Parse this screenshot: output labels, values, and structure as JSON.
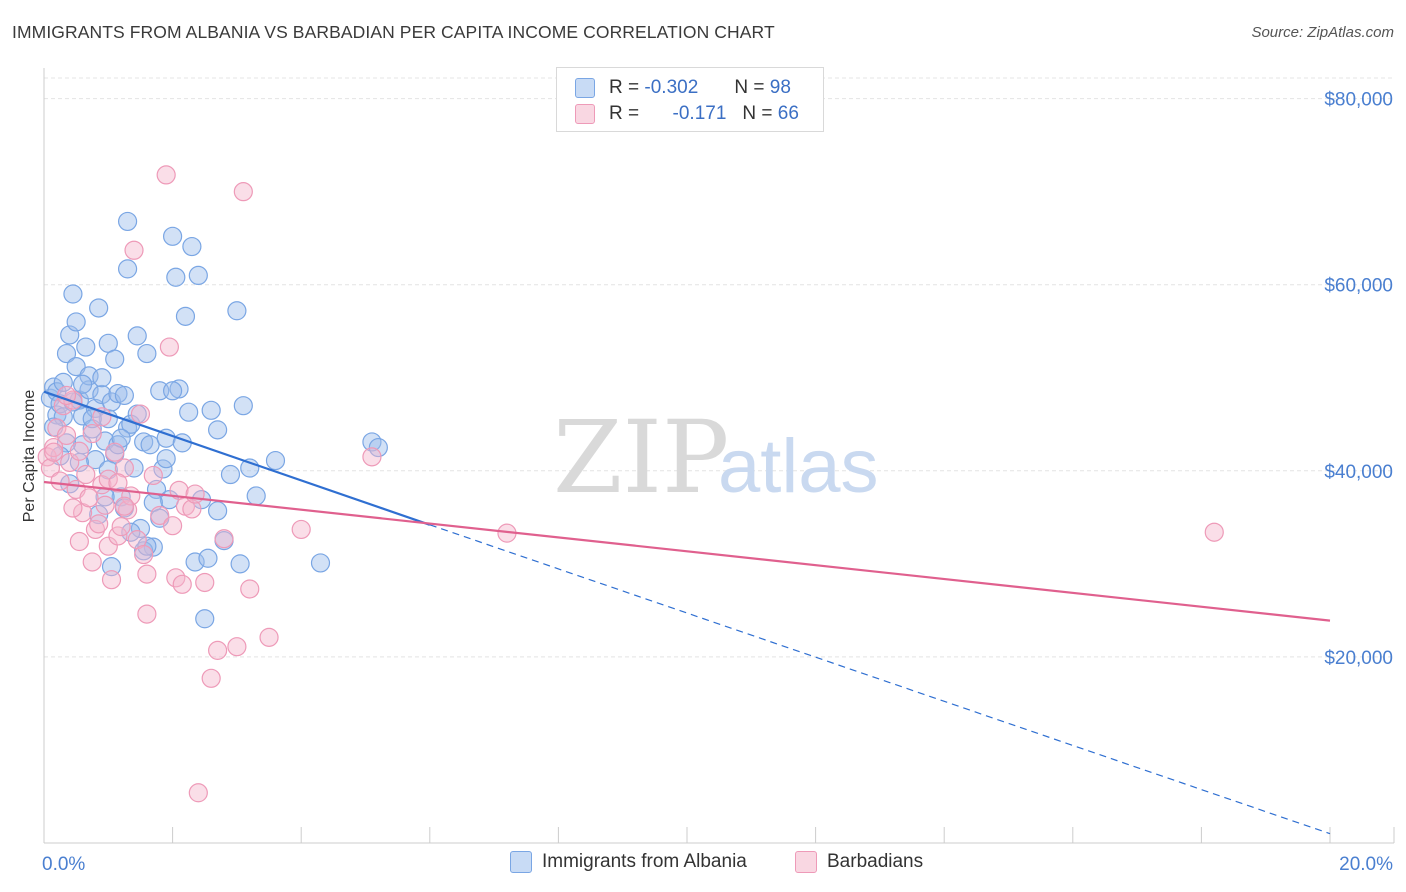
{
  "header": {
    "title": "IMMIGRANTS FROM ALBANIA VS BARBADIAN PER CAPITA INCOME CORRELATION CHART",
    "source": "Source: ZipAtlas.com"
  },
  "watermark": {
    "zip": "ZIP",
    "atlas": "atlas"
  },
  "legend": {
    "rows": [
      {
        "r_label": "R =",
        "r_value": "-0.302",
        "n_label": "N =",
        "n_value": "98",
        "color": "#9bbdec"
      },
      {
        "r_label": "R =",
        "r_value": "-0.171",
        "n_label": "N =",
        "n_value": "66",
        "color": "#f4b6cb"
      }
    ]
  },
  "bottom_legend": {
    "items": [
      {
        "label": "Immigrants from Albania",
        "color": "#9bbdec"
      },
      {
        "label": "Barbadians",
        "color": "#f4b6cb"
      }
    ]
  },
  "colors": {
    "blue_fill": "rgba(155,189,236,0.45)",
    "blue_stroke": "#7aa6e4",
    "blue_line": "#2f6fd1",
    "pink_fill": "rgba(244,182,203,0.45)",
    "pink_stroke": "#ee9ab8",
    "pink_line": "#e0608e",
    "grid": "#e4e4e4",
    "axis": "#cccccc"
  },
  "chart_data": {
    "type": "scatter",
    "title": "IMMIGRANTS FROM ALBANIA VS BARBADIAN PER CAPITA INCOME CORRELATION CHART",
    "xlabel": "",
    "ylabel": "Per Capita Income",
    "xlim": [
      0,
      20
    ],
    "ylim": [
      0,
      82000
    ],
    "x_tick_labels": [
      "0.0%",
      "20.0%"
    ],
    "y_ticks": [
      20000,
      40000,
      60000,
      80000
    ],
    "y_tick_labels": [
      "$20,000",
      "$40,000",
      "$60,000",
      "$80,000"
    ],
    "grid": true,
    "series": [
      {
        "name": "Immigrants from Albania",
        "r": -0.302,
        "n": 98,
        "trend": {
          "x0": 0,
          "y0": 48500,
          "x1": 6,
          "y1": 34200,
          "dash_x1": 20,
          "dash_y1": 1000
        },
        "points": [
          [
            0.1,
            47800
          ],
          [
            0.15,
            49000
          ],
          [
            0.2,
            48500
          ],
          [
            0.2,
            46000
          ],
          [
            0.25,
            47200
          ],
          [
            0.3,
            45800
          ],
          [
            0.3,
            49500
          ],
          [
            0.35,
            52600
          ],
          [
            0.4,
            54600
          ],
          [
            0.45,
            59000
          ],
          [
            0.5,
            51200
          ],
          [
            0.5,
            56000
          ],
          [
            0.55,
            47600
          ],
          [
            0.6,
            45900
          ],
          [
            0.6,
            42800
          ],
          [
            0.65,
            53300
          ],
          [
            0.7,
            48700
          ],
          [
            0.7,
            50200
          ],
          [
            0.75,
            44500
          ],
          [
            0.8,
            46700
          ],
          [
            0.8,
            41200
          ],
          [
            0.85,
            57500
          ],
          [
            0.9,
            48200
          ],
          [
            0.9,
            50000
          ],
          [
            0.95,
            43200
          ],
          [
            1.0,
            45600
          ],
          [
            1.0,
            53700
          ],
          [
            1.05,
            47400
          ],
          [
            1.1,
            41800
          ],
          [
            1.1,
            52000
          ],
          [
            1.15,
            48300
          ],
          [
            1.2,
            37200
          ],
          [
            1.25,
            36000
          ],
          [
            1.3,
            44600
          ],
          [
            1.3,
            61700
          ],
          [
            1.35,
            45000
          ],
          [
            1.4,
            40300
          ],
          [
            1.45,
            54500
          ],
          [
            1.5,
            33800
          ],
          [
            1.55,
            43100
          ],
          [
            1.6,
            52600
          ],
          [
            1.65,
            42800
          ],
          [
            1.7,
            31800
          ],
          [
            1.75,
            38000
          ],
          [
            1.8,
            48600
          ],
          [
            1.85,
            40200
          ],
          [
            1.9,
            43500
          ],
          [
            1.95,
            36900
          ],
          [
            2.0,
            65200
          ],
          [
            2.05,
            60800
          ],
          [
            2.1,
            48800
          ],
          [
            2.15,
            43000
          ],
          [
            2.2,
            56600
          ],
          [
            2.3,
            64100
          ],
          [
            2.35,
            30200
          ],
          [
            2.4,
            61000
          ],
          [
            2.45,
            36900
          ],
          [
            2.5,
            24100
          ],
          [
            2.6,
            46500
          ],
          [
            2.7,
            35700
          ],
          [
            2.8,
            32500
          ],
          [
            2.9,
            39600
          ],
          [
            3.0,
            57200
          ],
          [
            3.05,
            30000
          ],
          [
            3.1,
            47000
          ],
          [
            3.2,
            40300
          ],
          [
            3.3,
            37300
          ],
          [
            3.6,
            41100
          ],
          [
            4.3,
            30100
          ],
          [
            5.1,
            43100
          ],
          [
            5.2,
            42500
          ],
          [
            1.3,
            66800
          ],
          [
            0.35,
            43000
          ],
          [
            0.55,
            40900
          ],
          [
            0.85,
            35300
          ],
          [
            1.05,
            29700
          ],
          [
            1.55,
            31400
          ],
          [
            1.9,
            41300
          ],
          [
            1.15,
            42800
          ],
          [
            0.45,
            47400
          ],
          [
            2.55,
            30600
          ],
          [
            1.7,
            36600
          ],
          [
            0.95,
            37200
          ],
          [
            1.35,
            33400
          ],
          [
            0.25,
            41600
          ],
          [
            0.75,
            45600
          ],
          [
            2.0,
            48600
          ],
          [
            1.45,
            46100
          ],
          [
            1.2,
            43500
          ],
          [
            0.6,
            49300
          ],
          [
            1.0,
            40100
          ],
          [
            1.8,
            34900
          ],
          [
            2.25,
            46300
          ],
          [
            0.4,
            38600
          ],
          [
            1.6,
            31900
          ],
          [
            2.7,
            44400
          ],
          [
            0.15,
            44700
          ],
          [
            1.25,
            48100
          ]
        ]
      },
      {
        "name": "Barbadians",
        "r": -0.171,
        "n": 66,
        "trend": {
          "x0": 0,
          "y0": 38800,
          "x1": 20,
          "y1": 23900
        },
        "points": [
          [
            0.05,
            41500
          ],
          [
            0.1,
            40300
          ],
          [
            0.15,
            42500
          ],
          [
            0.2,
            44600
          ],
          [
            0.25,
            38900
          ],
          [
            0.3,
            47000
          ],
          [
            0.35,
            43800
          ],
          [
            0.4,
            40900
          ],
          [
            0.45,
            47600
          ],
          [
            0.5,
            38000
          ],
          [
            0.55,
            42100
          ],
          [
            0.6,
            35500
          ],
          [
            0.65,
            39600
          ],
          [
            0.7,
            37100
          ],
          [
            0.75,
            30200
          ],
          [
            0.8,
            33700
          ],
          [
            0.85,
            34300
          ],
          [
            0.9,
            38500
          ],
          [
            0.95,
            36300
          ],
          [
            1.0,
            31900
          ],
          [
            1.05,
            28300
          ],
          [
            1.1,
            42000
          ],
          [
            1.15,
            33000
          ],
          [
            1.2,
            34000
          ],
          [
            1.25,
            40300
          ],
          [
            1.3,
            35800
          ],
          [
            1.35,
            37300
          ],
          [
            1.4,
            63700
          ],
          [
            1.45,
            32600
          ],
          [
            1.5,
            46100
          ],
          [
            1.55,
            31000
          ],
          [
            1.6,
            24600
          ],
          [
            1.7,
            39500
          ],
          [
            1.8,
            35200
          ],
          [
            1.9,
            71800
          ],
          [
            2.0,
            34100
          ],
          [
            2.05,
            28500
          ],
          [
            2.1,
            37900
          ],
          [
            2.15,
            27800
          ],
          [
            2.2,
            36200
          ],
          [
            2.3,
            35900
          ],
          [
            2.4,
            5400
          ],
          [
            2.5,
            28000
          ],
          [
            2.6,
            17700
          ],
          [
            2.7,
            20700
          ],
          [
            2.8,
            32700
          ],
          [
            3.0,
            21100
          ],
          [
            3.1,
            70000
          ],
          [
            3.2,
            27300
          ],
          [
            3.5,
            22100
          ],
          [
            4.0,
            33700
          ],
          [
            5.1,
            41500
          ],
          [
            7.2,
            33300
          ],
          [
            18.2,
            33400
          ],
          [
            0.35,
            48100
          ],
          [
            0.55,
            32400
          ],
          [
            0.75,
            44000
          ],
          [
            1.0,
            39100
          ],
          [
            1.25,
            36200
          ],
          [
            1.6,
            28900
          ],
          [
            1.95,
            53300
          ],
          [
            2.35,
            37500
          ],
          [
            0.15,
            42000
          ],
          [
            0.45,
            36000
          ],
          [
            0.9,
            45800
          ],
          [
            1.15,
            38700
          ]
        ]
      }
    ]
  }
}
